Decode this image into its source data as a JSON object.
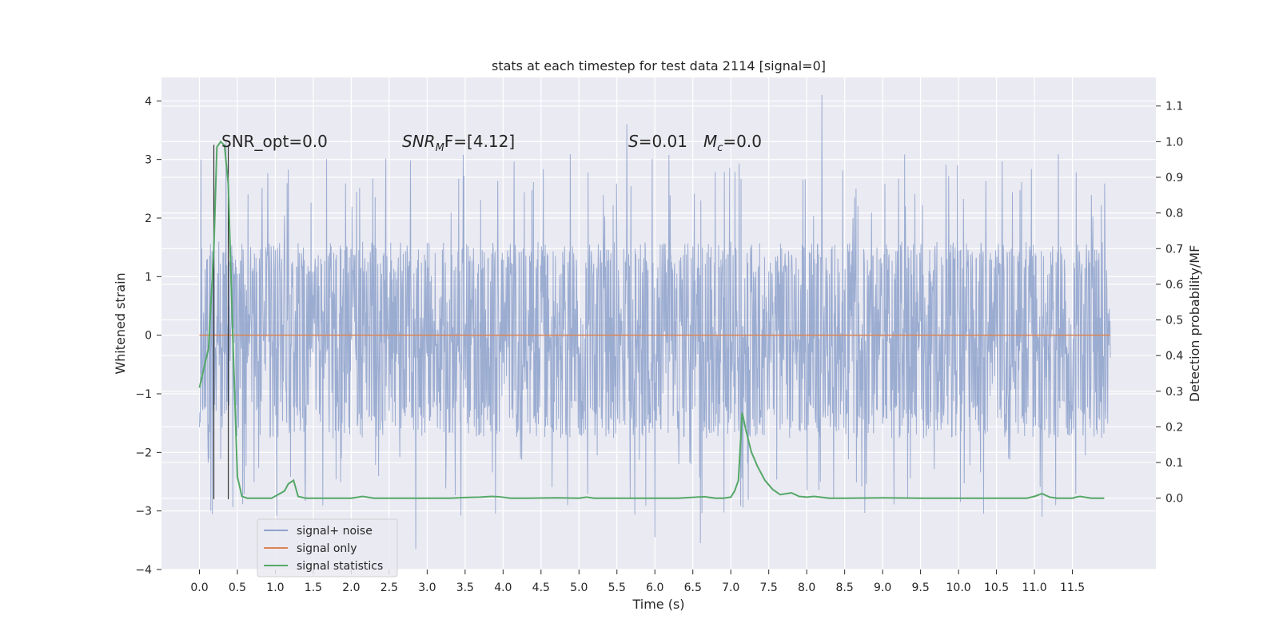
{
  "chart_data": {
    "type": "line",
    "title": "stats at each timestep for test data 2114 [signal=0]",
    "xlabel": "Time (s)",
    "ylabel": "Whitened strain",
    "ylabel_right": "Detection probability/MF",
    "xlim": [
      -0.5,
      12.6
    ],
    "ylim": [
      -4.0,
      4.4
    ],
    "ylim_right": [
      -0.2,
      1.18
    ],
    "x_ticks": [
      "0.0",
      "0.5",
      "1.0",
      "1.5",
      "2.0",
      "2.5",
      "3.0",
      "3.5",
      "4.0",
      "4.5",
      "5.0",
      "5.5",
      "6.0",
      "6.5",
      "7.0",
      "7.5",
      "8.0",
      "8.5",
      "9.0",
      "9.5",
      "10.0",
      "10.5",
      "11.0",
      "11.5"
    ],
    "y_ticks": [
      "4",
      "3",
      "2",
      "1",
      "0",
      "−1",
      "−2",
      "−3",
      "−4"
    ],
    "y_ticks_right": [
      "1.1",
      "1.0",
      "0.9",
      "0.8",
      "0.7",
      "0.6",
      "0.5",
      "0.4",
      "0.3",
      "0.2",
      "0.1",
      "0.0"
    ],
    "grid": true,
    "legend_position": "lower-left",
    "annotations": {
      "snr_opt": "SNR_opt=0.0",
      "snr_mf_main": "SNR",
      "snr_mf_sub": "M",
      "snr_mf_tail": "F=[4.12]",
      "s_label": "S",
      "s_value": "=0.01",
      "mc_main": "M",
      "mc_sub": "c",
      "mc_value": "=0.0"
    },
    "markers_x": [
      0.19,
      0.38
    ],
    "series": [
      {
        "name": "signal+ noise",
        "color": "#8da1cb",
        "style": "noise",
        "x_range": [
          0.0,
          12.0
        ],
        "typical_envelope": [
          -1.6,
          1.45
        ],
        "notable_peaks": [
          {
            "x": 0.02,
            "y": 3.0
          },
          {
            "x": 0.35,
            "y": 3.3
          },
          {
            "x": 5.63,
            "y": 3.6
          },
          {
            "x": 8.2,
            "y": 4.1
          },
          {
            "x": 6.0,
            "y": -3.45
          },
          {
            "x": 6.6,
            "y": -3.55
          },
          {
            "x": 2.85,
            "y": -3.65
          },
          {
            "x": 0.15,
            "y": -3.0
          },
          {
            "x": 11.1,
            "y": -3.1
          }
        ]
      },
      {
        "name": "signal only",
        "color": "#dd8452",
        "style": "flat",
        "x": [
          0.0,
          12.0
        ],
        "y": [
          0.0,
          0.0
        ]
      },
      {
        "name": "signal statistics",
        "color": "#55a868",
        "style": "line",
        "axis": "right",
        "x": [
          0.0,
          0.12,
          0.19,
          0.23,
          0.28,
          0.33,
          0.38,
          0.44,
          0.5,
          0.56,
          0.63,
          0.7,
          0.8,
          0.95,
          1.12,
          1.17,
          1.24,
          1.3,
          1.4,
          1.6,
          2.0,
          2.15,
          2.3,
          2.6,
          3.0,
          3.3,
          3.5,
          3.7,
          3.85,
          3.95,
          4.1,
          4.3,
          4.7,
          5.0,
          5.1,
          5.2,
          5.5,
          6.0,
          6.3,
          6.55,
          6.65,
          6.8,
          6.9,
          7.0,
          7.05,
          7.1,
          7.15,
          7.2,
          7.27,
          7.35,
          7.45,
          7.55,
          7.65,
          7.8,
          7.9,
          8.0,
          8.1,
          8.3,
          8.5,
          9.0,
          9.5,
          10.0,
          10.5,
          10.9,
          11.0,
          11.1,
          11.2,
          11.3,
          11.5,
          11.55,
          11.6,
          11.75,
          11.92
        ],
        "y": [
          0.31,
          0.42,
          0.7,
          0.985,
          1.0,
          0.99,
          0.88,
          0.45,
          0.06,
          0.005,
          0.0,
          0.0,
          0.0,
          0.0,
          0.02,
          0.04,
          0.05,
          0.005,
          0.0,
          0.0,
          0.0,
          0.005,
          0.0,
          0.0,
          0.0,
          0.0,
          0.002,
          0.003,
          0.005,
          0.004,
          0.0,
          0.0,
          0.001,
          0.0,
          0.003,
          0.0,
          0.0,
          0.0,
          0.0,
          0.003,
          0.004,
          0.0,
          0.0,
          0.003,
          0.02,
          0.05,
          0.24,
          0.19,
          0.13,
          0.09,
          0.05,
          0.025,
          0.01,
          0.015,
          0.005,
          0.003,
          0.005,
          0.0,
          0.0,
          0.001,
          0.0,
          0.0,
          0.0,
          0.0,
          0.005,
          0.013,
          0.003,
          0.0,
          0.0,
          0.003,
          0.005,
          0.0,
          0.0
        ]
      }
    ]
  }
}
